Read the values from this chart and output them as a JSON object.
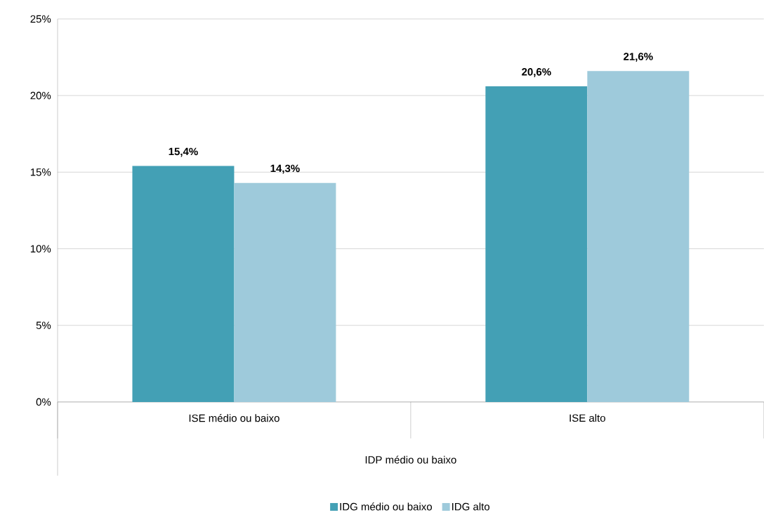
{
  "chart_data": {
    "type": "bar",
    "xlabel": "IDP médio ou baixo",
    "categories": [
      "ISE médio ou baixo",
      "ISE alto"
    ],
    "series": [
      {
        "name": "IDG médio ou baixo",
        "color": "#43a0b5",
        "values": [
          15.4,
          20.6
        ],
        "value_labels": [
          "15,4%",
          "20,6%"
        ]
      },
      {
        "name": "IDG alto",
        "color": "#9ecadb",
        "values": [
          14.3,
          21.6
        ],
        "value_labels": [
          "14,3%",
          "21,6%"
        ]
      }
    ],
    "ylim": [
      0,
      25
    ],
    "yticks": [
      {
        "value": 0,
        "label": "0%"
      },
      {
        "value": 5,
        "label": "5%"
      },
      {
        "value": 10,
        "label": "10%"
      },
      {
        "value": 15,
        "label": "15%"
      },
      {
        "value": 20,
        "label": "20%"
      },
      {
        "value": 25,
        "label": "25%"
      }
    ],
    "grid": "y",
    "legend": "bottom"
  }
}
